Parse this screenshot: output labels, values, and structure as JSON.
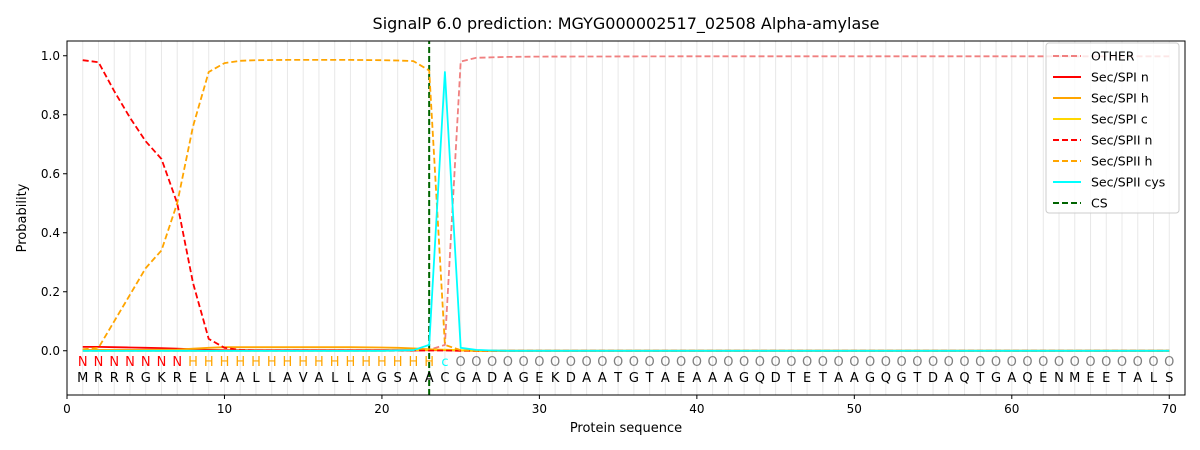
{
  "chart_data": {
    "type": "line",
    "title": "SignalP 6.0 prediction: MGYG000002517_02508 Alpha-amylase",
    "xlabel": "Protein sequence",
    "ylabel": "Probability",
    "xlim": [
      0,
      71
    ],
    "ylim": [
      -0.15,
      1.05
    ],
    "xticks": [
      0,
      10,
      20,
      30,
      40,
      50,
      60,
      70
    ],
    "yticks": [
      0.0,
      0.2,
      0.4,
      0.6,
      0.8,
      1.0
    ],
    "xtick_labels": [
      "0",
      "10",
      "20",
      "30",
      "40",
      "50",
      "60",
      "70"
    ],
    "ytick_labels": [
      "0.0",
      "0.2",
      "0.4",
      "0.6",
      "0.8",
      "1.0"
    ],
    "grid": "vertical lines at every residue",
    "legend_position": "top-right",
    "sequence": "MRRRGKRELAALLAVALLAGSAACGADAGEKDAATGTAEAAAGQDTETAAGQGTDAQTGAQENMEETALS",
    "region_labels": "NNNNNNNHHHHHHHHHHHHHHHHcOOOOOOOOOOOOOOOOOOOOOOOOOOOOOOOOOOOOOOOOOOOOOO",
    "region_colors": {
      "N": "#ff0000",
      "H": "#ffa500",
      "c": "#00ffff",
      "O": "#808080"
    },
    "cleavage_site": 23,
    "series": [
      {
        "name": "OTHER",
        "color": "#f08080",
        "dash": "dashed",
        "x": [
          1,
          2,
          22,
          23,
          24,
          25,
          26,
          28,
          30,
          40,
          50,
          60,
          70
        ],
        "y": [
          0,
          0,
          0,
          0.003,
          0.02,
          0.98,
          0.993,
          0.996,
          0.997,
          0.998,
          0.998,
          0.998,
          0.998
        ]
      },
      {
        "name": "Sec/SPI n",
        "color": "#ff0000",
        "dash": "solid",
        "x": [
          1,
          2,
          3,
          4,
          5,
          6,
          7,
          8,
          9,
          10,
          20,
          22,
          23,
          24,
          25,
          26,
          70
        ],
        "y": [
          0.013,
          0.013,
          0.012,
          0.011,
          0.01,
          0.009,
          0.007,
          0.005,
          0.003,
          0.002,
          0.002,
          0.002,
          0.002,
          0.002,
          0.001,
          0,
          0
        ]
      },
      {
        "name": "Sec/SPI h",
        "color": "#ffa500",
        "dash": "solid",
        "x": [
          1,
          2,
          5,
          7,
          8,
          9,
          10,
          12,
          15,
          18,
          20,
          21,
          22,
          23,
          24,
          25,
          26,
          70
        ],
        "y": [
          0.003,
          0.003,
          0.003,
          0.004,
          0.007,
          0.01,
          0.012,
          0.012,
          0.012,
          0.012,
          0.011,
          0.01,
          0.008,
          0.005,
          0.003,
          0.001,
          0,
          0
        ]
      },
      {
        "name": "Sec/SPI c",
        "color": "#ffd700",
        "dash": "solid",
        "x": [
          1,
          20,
          22,
          23,
          24,
          25,
          26,
          70
        ],
        "y": [
          0,
          0,
          0.002,
          0.003,
          0.004,
          0.002,
          0,
          0
        ]
      },
      {
        "name": "Sec/SPII n",
        "color": "#ff0000",
        "dash": "dashed",
        "x": [
          1,
          2,
          3,
          4,
          5,
          6,
          7,
          8,
          9,
          10,
          11,
          12,
          20,
          22,
          23,
          24,
          25,
          70
        ],
        "y": [
          0.985,
          0.978,
          0.88,
          0.79,
          0.71,
          0.65,
          0.5,
          0.23,
          0.04,
          0.01,
          0.003,
          0.001,
          0.001,
          0.001,
          0.001,
          0.001,
          0,
          0
        ]
      },
      {
        "name": "Sec/SPII h",
        "color": "#ffa500",
        "dash": "dashed",
        "x": [
          1,
          2,
          3,
          4,
          5,
          6,
          7,
          8,
          9,
          10,
          11,
          12,
          14,
          16,
          18,
          20,
          21,
          22,
          23,
          24,
          25,
          26,
          70
        ],
        "y": [
          0.005,
          0.01,
          0.1,
          0.19,
          0.28,
          0.34,
          0.5,
          0.76,
          0.945,
          0.975,
          0.983,
          0.985,
          0.986,
          0.986,
          0.986,
          0.985,
          0.984,
          0.982,
          0.95,
          0.02,
          0.002,
          0,
          0
        ]
      },
      {
        "name": "Sec/SPII cys",
        "color": "#00ffff",
        "dash": "solid",
        "x": [
          1,
          10,
          20,
          22,
          23,
          24,
          25,
          26,
          27,
          28,
          70
        ],
        "y": [
          0,
          0,
          0,
          0.002,
          0.02,
          0.945,
          0.01,
          0.003,
          0.001,
          0,
          0
        ]
      },
      {
        "name": "CS",
        "color": "#006400",
        "dash": "dashed",
        "x": [
          23,
          23
        ],
        "y": [
          -0.15,
          1.05
        ]
      }
    ]
  }
}
